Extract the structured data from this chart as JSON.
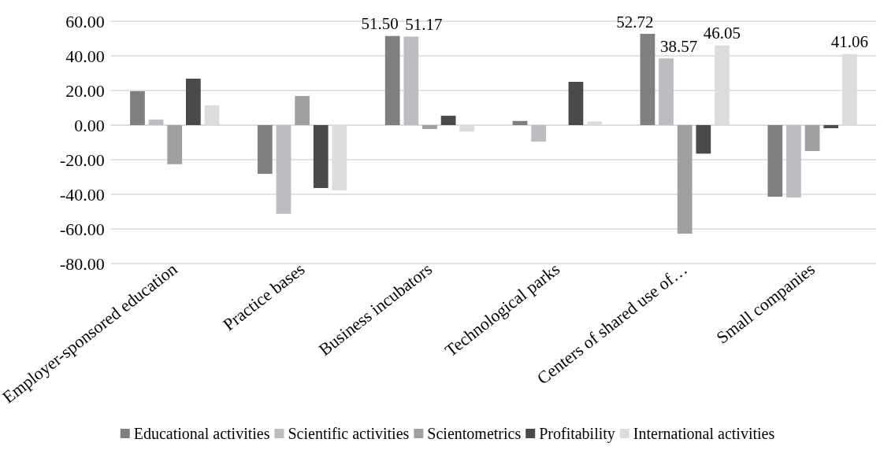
{
  "chart_data": {
    "type": "bar",
    "categories": [
      "Employer-sponsored education",
      "Practice bases",
      "Business incubators",
      "Technological parks",
      "Centers of shared use of…",
      "Small companies"
    ],
    "series": [
      {
        "name": "Educational activities",
        "color": "#7f7f81",
        "values": [
          19.6,
          -28.2,
          51.5,
          2.4,
          52.72,
          -41.4
        ],
        "value_labels": [
          null,
          null,
          "51.50",
          null,
          "52.72",
          null
        ]
      },
      {
        "name": "Scientific activities",
        "color": "#bcbdc0",
        "values": [
          3.2,
          -51.2,
          51.17,
          -9.5,
          38.57,
          -41.8
        ],
        "value_labels": [
          null,
          null,
          "51.17",
          null,
          "38.57",
          null
        ]
      },
      {
        "name": "Scientometrics",
        "color": "#a0a0a0",
        "values": [
          -22.6,
          16.8,
          -2.3,
          0,
          -62.7,
          -15
        ],
        "value_labels": [
          null,
          null,
          null,
          null,
          null,
          null
        ]
      },
      {
        "name": "Profitability",
        "color": "#4a4a4c",
        "values": [
          26.8,
          -36.4,
          5.4,
          25,
          -16.5,
          -1.8
        ],
        "value_labels": [
          null,
          null,
          null,
          null,
          null,
          null
        ]
      },
      {
        "name": "International activities",
        "color": "#dcdcde",
        "values": [
          11.4,
          -37.7,
          -3.8,
          2.1,
          46.05,
          41.06
        ],
        "value_labels": [
          null,
          null,
          null,
          null,
          "46.05",
          "41.06"
        ]
      }
    ],
    "ylim": [
      -80,
      60
    ],
    "yticks": [
      {
        "value": -80,
        "label": "-80.00"
      },
      {
        "value": -60,
        "label": "-60.00"
      },
      {
        "value": -40,
        "label": "-40.00"
      },
      {
        "value": -20,
        "label": "-20.00"
      },
      {
        "value": 0,
        "label": "0.00"
      },
      {
        "value": 20,
        "label": "20.00"
      },
      {
        "value": 40,
        "label": "40.00"
      },
      {
        "value": 60,
        "label": "60.00"
      }
    ],
    "grid": "y",
    "legend": "bottom"
  }
}
